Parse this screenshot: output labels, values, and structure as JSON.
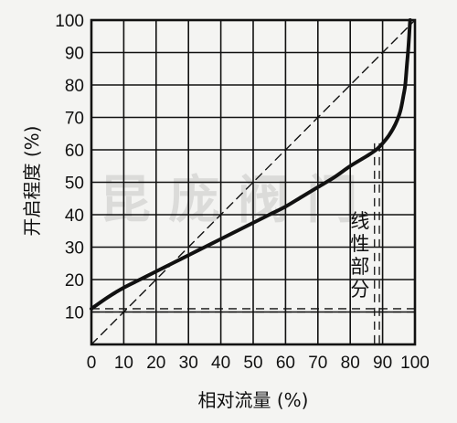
{
  "chart_data": {
    "type": "line",
    "title": "",
    "xlabel": "相对流量 (%)",
    "ylabel": "开启程度 (%)",
    "xlim": [
      0,
      100
    ],
    "ylim": [
      0,
      100
    ],
    "xticks": [
      "0",
      "10",
      "20",
      "30",
      "40",
      "50",
      "60",
      "70",
      "80",
      "90",
      "100"
    ],
    "yticks": [
      "10",
      "20",
      "30",
      "40",
      "50",
      "60",
      "70",
      "80",
      "90",
      "100"
    ],
    "grid": true,
    "series": [
      {
        "style": "solid",
        "points": [
          [
            0,
            11
          ],
          [
            5,
            14.5
          ],
          [
            10,
            17.5
          ],
          [
            15,
            20
          ],
          [
            20,
            22.5
          ],
          [
            25,
            25
          ],
          [
            30,
            27.5
          ],
          [
            35,
            30
          ],
          [
            40,
            32.5
          ],
          [
            45,
            35
          ],
          [
            50,
            37.5
          ],
          [
            55,
            40
          ],
          [
            60,
            42.5
          ],
          [
            65,
            45.5
          ],
          [
            70,
            48.5
          ],
          [
            75,
            51.5
          ],
          [
            80,
            55
          ],
          [
            85,
            58
          ],
          [
            88,
            60
          ],
          [
            90,
            62
          ],
          [
            92,
            64.5
          ],
          [
            94,
            68
          ],
          [
            95.5,
            72
          ],
          [
            96.5,
            77
          ],
          [
            97,
            80
          ],
          [
            97.5,
            86
          ],
          [
            98,
            92
          ],
          [
            98.5,
            100
          ]
        ]
      },
      {
        "style": "dashed",
        "points": [
          [
            0,
            0
          ],
          [
            100,
            100
          ]
        ]
      }
    ],
    "reference_lines": [
      {
        "orientation": "horizontal",
        "value": 10,
        "style": "dashed"
      },
      {
        "orientation": "horizontal",
        "value": 11,
        "style": "dashed"
      },
      {
        "orientation": "vertical",
        "value": 87.5,
        "style": "dashed"
      },
      {
        "orientation": "vertical",
        "value": 89,
        "style": "dashed"
      }
    ],
    "annotations": [
      {
        "text": "线",
        "x": 83,
        "y": 36
      },
      {
        "text": "性",
        "x": 83,
        "y": 29
      },
      {
        "text": "部",
        "x": 83,
        "y": 22
      },
      {
        "text": "分",
        "x": 83,
        "y": 15
      }
    ],
    "watermark": "昆 庞 阀 门",
    "colors": {
      "ink": "#111111",
      "paper": "#f4f4f2",
      "watermark": "#bdbdbd"
    }
  }
}
